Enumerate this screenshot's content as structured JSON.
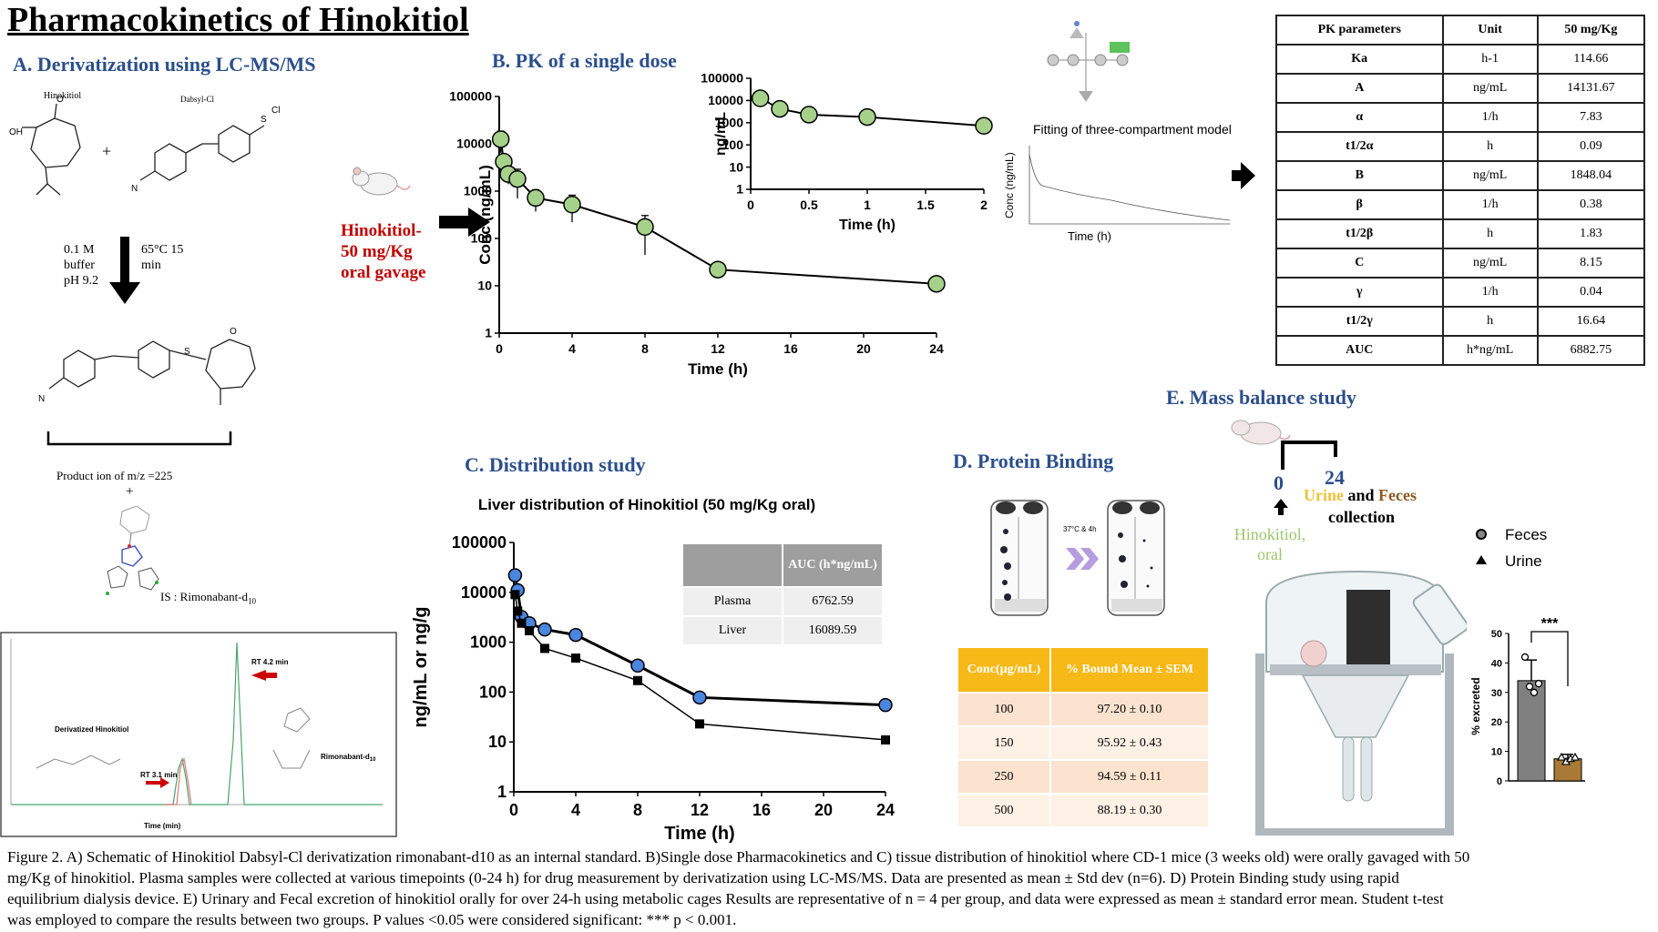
{
  "title": "Pharmacokinetics of Hinokitiol",
  "panels": {
    "a": "A. Derivatization using LC-MS/MS",
    "b": "B. PK of a single dose",
    "c": "C. Distribution study",
    "d": "D. Protein Binding",
    "e": "E. Mass balance study"
  },
  "panel_a": {
    "reactant1": "Hinokitiol",
    "reactant2": "Dabsyl-Cl",
    "plus": "+",
    "cond_left": [
      "0.1 M",
      "buffer",
      "pH 9.2"
    ],
    "cond_right": [
      "65°C 15",
      "min"
    ],
    "product_ion": "Product ion of m/z =225",
    "plus2": "+",
    "is_label_main": "IS : Rimonabant-d",
    "is_label_sub": "10",
    "chrom_deriv": "Derivatized Hinokitiol",
    "chrom_rimo": "Rimonabant-d",
    "chrom_rimo_sub": "10",
    "rt1": "RT 3.1 min",
    "rt2": "RT 4.2 min",
    "chrom_xlabel": "Time (min)"
  },
  "dose_label": [
    "Hinokitiol-",
    "50 mg/Kg",
    "oral gavage"
  ],
  "model_label": "Fitting of three-compartment model",
  "model_xlabel": "Time (h)",
  "model_ylabel": "Conc (ng/mL)",
  "pk_table": {
    "headers": [
      "PK parameters",
      "Unit",
      "50 mg/Kg"
    ],
    "rows": [
      [
        "Ka",
        "h-1",
        "114.66"
      ],
      [
        "A",
        "ng/mL",
        "14131.67"
      ],
      [
        "α",
        "1/h",
        "7.83"
      ],
      [
        "t1/2α",
        "h",
        "0.09"
      ],
      [
        "B",
        "ng/mL",
        "1848.04"
      ],
      [
        "β",
        "1/h",
        "0.38"
      ],
      [
        "t1/2β",
        "h",
        "1.83"
      ],
      [
        "C",
        "ng/mL",
        "8.15"
      ],
      [
        "γ",
        "1/h",
        "0.04"
      ],
      [
        "t1/2γ",
        "h",
        "16.64"
      ],
      [
        "AUC",
        "h*ng/mL",
        "6882.75"
      ]
    ]
  },
  "auc_table": {
    "headers": [
      "",
      "AUC (h*ng/mL)"
    ],
    "rows": [
      [
        "Plasma",
        "6762.59"
      ],
      [
        "Liver",
        "16089.59"
      ]
    ]
  },
  "pb_table": {
    "headers": [
      "Conc(µg/mL)",
      "% Bound Mean ± SEM"
    ],
    "rows": [
      [
        "100",
        "97.20 ± 0.10"
      ],
      [
        "150",
        "95.92 ± 0.43"
      ],
      [
        "250",
        "94.59 ± 0.11"
      ],
      [
        "500",
        "88.19 ± 0.30"
      ]
    ]
  },
  "pb_incubation": "37°C & 4h",
  "mass_balance": {
    "t0": "0",
    "t24": "24",
    "urine": "Urine",
    "and": " and ",
    "feces": "Feces",
    "collection": "collection",
    "drug": [
      "Hinokitiol,",
      "oral"
    ],
    "legend": [
      "Feces",
      "Urine"
    ],
    "sig": "***"
  },
  "colors": {
    "panel_title": "#2c4f8c",
    "dose_red": "#c00000",
    "green_marker": "#a6d18a",
    "blue_marker": "#4a86e0",
    "table_yellow": "#f7b918",
    "urine_yellow": "#f0c23a",
    "feces_brown": "#8b5a1f",
    "hinokitiol_green": "#9dc56b",
    "bar_urine": "#a87a35",
    "bar_feces": "#808080"
  },
  "caption": [
    "Figure 2. A) Schematic of Hinokitiol Dabsyl-Cl derivatization rimonabant-d10 as an internal standard. B)Single dose Pharmacokinetics and C) tissue distribution of hinokitiol where CD-1 mice (3 weeks old) were orally gavaged with 50",
    "mg/Kg of hinokitiol. Plasma samples were collected at various timepoints (0-24 h) for drug measurement by derivatization using LC-MS/MS. Data are presented as mean ± Std dev (n=6). D) Protein Binding study using rapid",
    "equilibrium dialysis device. E) Urinary and Fecal excretion of hinokitiol orally for over 24-h using metabolic cages Results are representative of n = 4 per group, and data were expressed as mean ± standard error mean. Student t-test",
    "was employed to compare the results between two groups. P values <0.05 were considered significant: *** p < 0.001."
  ],
  "chart_data": [
    {
      "type": "line",
      "id": "pk_main",
      "xlabel": "Time (h)",
      "ylabel": "Conc (ng/mL)",
      "yscale": "log",
      "xlim": [
        0,
        24
      ],
      "ylim": [
        1,
        100000
      ],
      "xticks": [
        "0",
        "4",
        "8",
        "12",
        "16",
        "20",
        "24"
      ],
      "yticks": [
        "1",
        "10",
        "100",
        "1000",
        "10000",
        "100000"
      ],
      "x": [
        0.083,
        0.25,
        0.5,
        1,
        2,
        4,
        8,
        12,
        24
      ],
      "values": [
        12500,
        4200,
        2300,
        1800,
        720,
        520,
        175,
        22,
        11
      ],
      "err": [
        6000,
        1500,
        900,
        1100,
        350,
        300,
        130,
        0,
        0
      ]
    },
    {
      "type": "line",
      "id": "pk_inset",
      "xlabel": "Time (h)",
      "ylabel": "ng/mL",
      "yscale": "log",
      "xlim": [
        0,
        2
      ],
      "ylim": [
        1,
        100000
      ],
      "xticks": [
        "0",
        "0.5",
        "1",
        "1.5",
        "2"
      ],
      "yticks": [
        "1",
        "10",
        "100",
        "1000",
        "10000",
        "100000"
      ],
      "x": [
        0.083,
        0.25,
        0.5,
        1,
        2
      ],
      "values": [
        12500,
        4200,
        2300,
        1800,
        720
      ]
    },
    {
      "type": "line",
      "id": "liver",
      "title": "Liver distribution of Hinokitiol (50 mg/Kg oral)",
      "xlabel": "Time (h)",
      "ylabel": "ng/mL or ng/g",
      "yscale": "log",
      "xlim": [
        0,
        24
      ],
      "ylim": [
        1,
        100000
      ],
      "xticks": [
        "0",
        "4",
        "8",
        "12",
        "16",
        "20",
        "24"
      ],
      "yticks": [
        "1",
        "10",
        "100",
        "1000",
        "10000",
        "100000"
      ],
      "series": [
        {
          "x": [
            0.083,
            0.25,
            0.5,
            1,
            2,
            4,
            8,
            12,
            24
          ],
          "values": [
            22000,
            11000,
            3200,
            2400,
            1800,
            1400,
            340,
            78,
            55
          ]
        },
        {
          "x": [
            0.083,
            0.25,
            0.5,
            1,
            2,
            4,
            8,
            12,
            24
          ],
          "values": [
            9000,
            4200,
            2400,
            1700,
            750,
            480,
            170,
            23,
            11
          ]
        }
      ]
    },
    {
      "type": "bar",
      "id": "excretion",
      "ylabel": "% excreted",
      "ylim": [
        0,
        50
      ],
      "yticks": [
        "0",
        "10",
        "20",
        "30",
        "40",
        "50"
      ],
      "categories": [
        "Feces",
        "Urine"
      ],
      "values": [
        34,
        7.5
      ],
      "err": [
        7,
        1.5
      ],
      "points": [
        [
          42,
          32,
          30,
          33
        ],
        [
          8,
          6.5,
          7.5,
          8
        ]
      ]
    }
  ]
}
